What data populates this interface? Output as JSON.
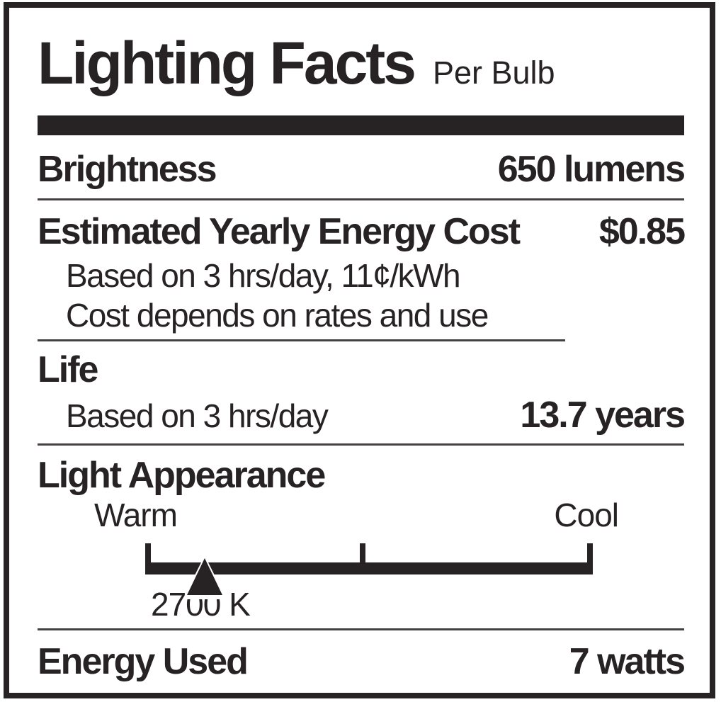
{
  "title": "Lighting Facts",
  "subtitle": "Per Bulb",
  "brightness": {
    "label": "Brightness",
    "value": "650 lumens"
  },
  "energy_cost": {
    "label": "Estimated Yearly Energy Cost",
    "value": "$0.85",
    "notes": [
      "Based on 3 hrs/day, 11¢/kWh",
      "Cost depends on rates and use"
    ]
  },
  "life": {
    "label": "Life",
    "basis": "Based on 3 hrs/day",
    "value": "13.7 years"
  },
  "light_appearance": {
    "label": "Light Appearance",
    "scale_left": "Warm",
    "scale_right": "Cool",
    "marker_value": "2700 K"
  },
  "energy_used": {
    "label": "Energy Used",
    "value": "7 watts"
  },
  "colors": {
    "ink": "#272223",
    "divider": "#454041",
    "background": "#ffffff"
  }
}
